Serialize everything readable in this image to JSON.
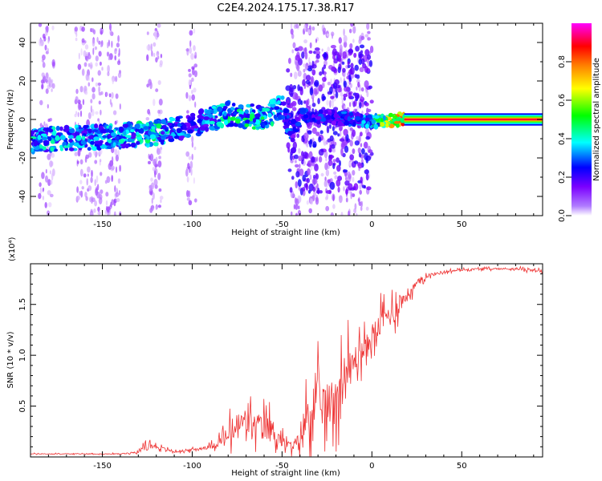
{
  "title": "C2E4.2024.175.17.38.R17",
  "chart_data": [
    {
      "type": "heatmap",
      "xlabel": "Height of straight line (km)",
      "ylabel": "Frequency (Hz)",
      "xlim": [
        -190,
        95
      ],
      "ylim": [
        -50,
        50
      ],
      "xticks": [
        -150,
        -100,
        -50,
        0,
        50
      ],
      "yticks": [
        40,
        20,
        0,
        -20,
        -40
      ],
      "colorbar": {
        "label": "Normalized spectral amplitude",
        "range": [
          0,
          1
        ],
        "ticks": [
          0.0,
          0.2,
          0.4,
          0.6,
          0.8
        ],
        "tick_labels": [
          "0.0",
          "0.2",
          "0.4",
          "0.6",
          "0.8"
        ],
        "colormap": [
          "#ffffff",
          "#7b00ff",
          "#0000ff",
          "#00ffff",
          "#00ff00",
          "#ffff00",
          "#ff8000",
          "#ff0000",
          "#ff00ff"
        ]
      },
      "ridge": {
        "description_points_x": [
          -190,
          -150,
          -120,
          -100,
          -80,
          -60,
          -50,
          -45,
          -40,
          -20,
          0,
          20,
          50,
          95
        ],
        "frequency_y": [
          -11,
          -9,
          -7,
          -3,
          3,
          1,
          7,
          -8,
          2,
          1,
          -1,
          0,
          0,
          0
        ],
        "amplitude": [
          0.45,
          0.4,
          0.5,
          0.3,
          0.5,
          0.5,
          0.4,
          0.3,
          0.3,
          0.3,
          0.4,
          0.9,
          0.9,
          0.9
        ]
      },
      "grid": false
    },
    {
      "type": "line",
      "xlabel": "Height of straight line (km)",
      "ylabel": "SNR (10 * v/v)",
      "y_multiplier": "(x10⁴)",
      "xlim": [
        -190,
        95
      ],
      "ylim": [
        0,
        1.9
      ],
      "xticks": [
        -150,
        -100,
        -50,
        0,
        50
      ],
      "yticks": [
        0.5,
        1.0,
        1.5
      ],
      "ytick_labels": [
        "0.5",
        "1.0",
        "1.5"
      ],
      "color": "#ee3333",
      "series": [
        {
          "x": [
            -190,
            -160,
            -140,
            -130,
            -125,
            -120,
            -110,
            -100,
            -90,
            -85,
            -80,
            -75,
            -70,
            -65,
            -60,
            -55,
            -50,
            -45,
            -42,
            -38,
            -35,
            -30,
            -25,
            -20,
            -15,
            -12,
            -10,
            -8,
            -5,
            -2,
            0,
            3,
            6,
            10,
            15,
            20,
            25,
            30,
            40,
            50,
            60,
            70,
            80,
            90,
            95
          ],
          "y": [
            0.03,
            0.03,
            0.03,
            0.05,
            0.12,
            0.1,
            0.05,
            0.07,
            0.1,
            0.15,
            0.2,
            0.3,
            0.35,
            0.3,
            0.3,
            0.25,
            0.15,
            0.1,
            0.12,
            0.3,
            0.45,
            0.55,
            0.5,
            0.6,
            0.8,
            0.85,
            0.95,
            1.0,
            1.05,
            1.1,
            1.2,
            1.25,
            1.35,
            1.4,
            1.5,
            1.6,
            1.7,
            1.78,
            1.82,
            1.84,
            1.85,
            1.85,
            1.85,
            1.84,
            1.83
          ],
          "noise": [
            0.01,
            0.01,
            0.01,
            0.02,
            0.08,
            0.05,
            0.02,
            0.03,
            0.05,
            0.15,
            0.25,
            0.35,
            0.35,
            0.3,
            0.3,
            0.3,
            0.15,
            0.1,
            0.15,
            0.45,
            0.55,
            0.6,
            0.55,
            0.55,
            0.6,
            0.5,
            0.35,
            0.3,
            0.3,
            0.3,
            0.3,
            0.3,
            0.3,
            0.3,
            0.25,
            0.15,
            0.1,
            0.05,
            0.03,
            0.02,
            0.02,
            0.02,
            0.02,
            0.04,
            0.04
          ]
        }
      ],
      "grid": false
    }
  ]
}
